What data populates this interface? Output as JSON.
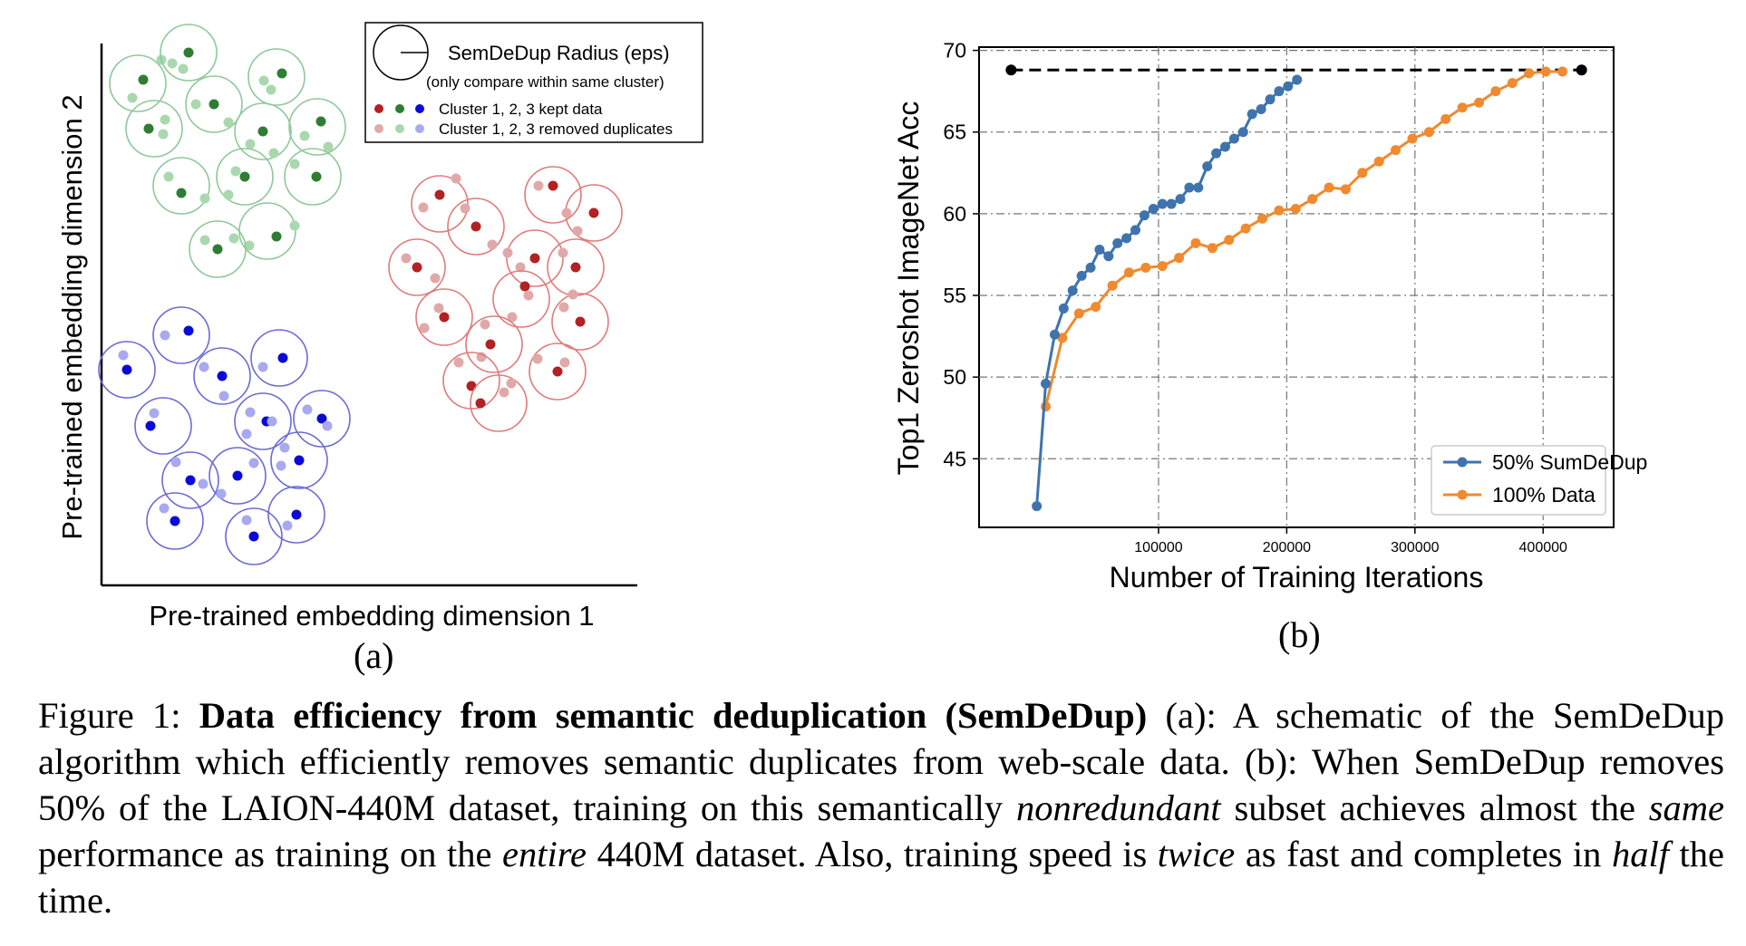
{
  "panel_a": {
    "sublabel": "(a)",
    "xlabel": "Pre-trained embedding dimension 1",
    "ylabel": "Pre-trained embedding dimension 2",
    "legend": {
      "radius_label": "SemDeDup Radius (eps)",
      "radius_note": "(only compare within same cluster)",
      "kept_label": "Cluster 1, 2, 3 kept data",
      "removed_label": "Cluster 1, 2, 3 removed duplicates"
    },
    "colors": {
      "cluster1": "#b22222",
      "cluster1_light": "#e0a9a9",
      "cluster1_ring": "#e07b7b",
      "cluster2": "#2e7d32",
      "cluster2_light": "#a9d8ae",
      "cluster2_ring": "#8fc89a",
      "cluster3": "#0a0ad8",
      "cluster3_light": "#a9a9f0",
      "cluster3_ring": "#6b6bd6"
    }
  },
  "panel_b": {
    "sublabel": "(b)",
    "chart_data": {
      "type": "line",
      "title": "",
      "xlabel": "Number of Training Iterations",
      "ylabel": "Top1 Zeroshot ImageNet Acc",
      "xlim": [
        -40000,
        455000
      ],
      "ylim": [
        40.8,
        70.2
      ],
      "xticks": [
        100000,
        200000,
        300000,
        400000
      ],
      "xtick_labels": [
        "100000",
        "200000",
        "300000",
        "400000"
      ],
      "yticks": [
        45,
        50,
        55,
        60,
        65,
        70
      ],
      "ytick_labels": [
        "45",
        "50",
        "55",
        "60",
        "65",
        "70"
      ],
      "grid": true,
      "legend_position": "lower-right",
      "reference_line": {
        "style": "dashed",
        "color": "#000000",
        "x": [
          -15000,
          430000
        ],
        "y": [
          68.8,
          68.8
        ]
      },
      "series": [
        {
          "name": "50% SumDeDup",
          "color": "#3f73ad",
          "x": [
            5000,
            12000,
            19000,
            26000,
            33000,
            40000,
            47000,
            54000,
            61000,
            68000,
            75000,
            82000,
            89000,
            96000,
            103000,
            110000,
            117000,
            124000,
            131000,
            138000,
            145000,
            152000,
            159000,
            166000,
            173000,
            180000,
            187000,
            194000,
            201000,
            208000
          ],
          "y": [
            42.1,
            49.6,
            52.6,
            54.2,
            55.3,
            56.2,
            56.7,
            57.8,
            57.4,
            58.2,
            58.5,
            59.0,
            59.9,
            60.3,
            60.6,
            60.6,
            60.9,
            61.6,
            61.6,
            62.9,
            63.7,
            64.1,
            64.6,
            65.0,
            66.1,
            66.4,
            67.0,
            67.5,
            67.8,
            68.2
          ]
        },
        {
          "name": "100% Data",
          "color": "#ef8a2f",
          "x": [
            12000,
            25000,
            38000,
            51000,
            64000,
            77000,
            90000,
            103000,
            116000,
            129000,
            142000,
            155000,
            168000,
            181000,
            194000,
            207000,
            220000,
            233000,
            246000,
            259000,
            272000,
            285000,
            298000,
            311000,
            324000,
            337000,
            350000,
            363000,
            376000,
            389000,
            402000,
            415000
          ],
          "y": [
            48.2,
            52.4,
            53.9,
            54.3,
            55.6,
            56.4,
            56.7,
            56.8,
            57.3,
            58.2,
            57.9,
            58.4,
            59.1,
            59.7,
            60.2,
            60.3,
            60.9,
            61.6,
            61.5,
            62.5,
            63.2,
            63.9,
            64.6,
            65.0,
            65.8,
            66.5,
            66.8,
            67.5,
            68.0,
            68.6,
            68.7,
            68.7
          ]
        }
      ]
    }
  },
  "caption": {
    "prefix": "Figure 1:",
    "title": "Data efficiency from semantic deduplication (SemDeDup)",
    "part1": " (a): A schematic of the SemDeDup algorithm which efficiently removes semantic duplicates from web-scale data. (b): When SemDeDup removes 50% of the LAION-440M dataset, training on this semantically ",
    "em1": "nonredundant",
    "part2": " subset achieves almost the ",
    "em2": "same",
    "part3": " performance as training on the ",
    "em3": "entire",
    "part4": " 440M dataset. Also, training speed is ",
    "em4": "twice",
    "part5": " as fast and completes in ",
    "em5": "half",
    "part6": " the time."
  }
}
